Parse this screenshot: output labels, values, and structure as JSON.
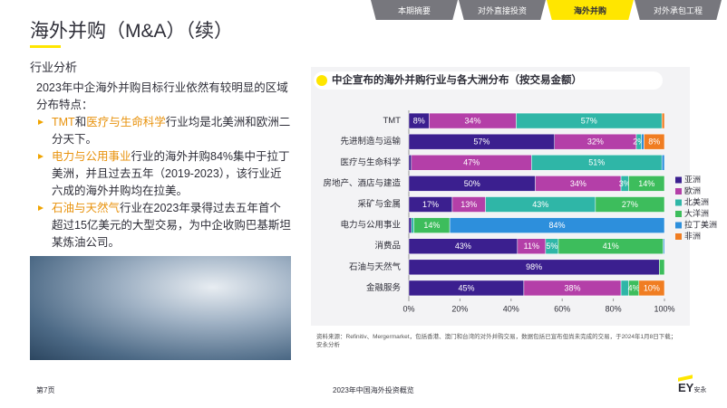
{
  "header": {
    "tabs": [
      "本期摘要",
      "对外直接投资",
      "海外并购",
      "对外承包工程"
    ],
    "active_tab": 2,
    "title": "海外并购（M&A）（续）",
    "section": "行业分析"
  },
  "text": {
    "intro": "2023年中企海外并购目标行业依然有较明显的区域分布特点：",
    "bullets": [
      [
        {
          "text": "TMT",
          "emphasis": true
        },
        {
          "text": "和"
        },
        {
          "text": "医疗与生命科学",
          "emphasis": true
        },
        {
          "text": "行业均是北美洲和欧洲二分天下。"
        }
      ],
      [
        {
          "text": "电力与公用事业",
          "emphasis": true
        },
        {
          "text": "行业的海外并购84%集中于拉丁美洲，并且过去五年（2019-2023），该行业近六成的海外并购均在拉美。"
        }
      ],
      [
        {
          "text": "石油与天然气",
          "emphasis": true
        },
        {
          "text": "行业在2023年录得过去五年首个超过15亿美元的大型交易，为中企收购巴基斯坦某炼油公司。"
        }
      ]
    ]
  },
  "chart_data": {
    "type": "stacked_barh",
    "title": "中企宣布的海外并购行业与各大洲分布（按交易金额）",
    "categories": [
      "TMT",
      "先进制造与运输",
      "医疗与生命科学",
      "房地产、酒店与建造",
      "采矿与金属",
      "电力与公用事业",
      "消费品",
      "石油与天然气",
      "金融服务"
    ],
    "series": [
      {
        "name": "亚洲",
        "color": "#3b1f8f",
        "values": [
          8,
          57,
          1,
          49.5,
          17,
          1,
          42.5,
          98,
          45
        ],
        "value_labels": [
          "8%",
          "57%",
          null,
          "50%",
          "17%",
          null,
          "43%",
          "98%",
          "45%"
        ]
      },
      {
        "name": "欧洲",
        "color": "#b43fa8",
        "values": [
          34,
          32,
          47,
          33.5,
          13,
          0,
          11,
          0,
          38
        ],
        "value_labels": [
          "34%",
          "32%",
          "47%",
          "34%",
          "13%",
          null,
          "11%",
          null,
          "38%"
        ]
      },
      {
        "name": "北美洲",
        "color": "#2fb6a7",
        "values": [
          57,
          2,
          51,
          3,
          43,
          1,
          5,
          0,
          3
        ],
        "value_labels": [
          "57%",
          "2%",
          "51%",
          "3%",
          "43%",
          null,
          "5%",
          null,
          null
        ]
      },
      {
        "name": "大洋洲",
        "color": "#3dbd5c",
        "values": [
          0,
          0,
          0,
          14,
          27,
          14,
          41,
          2,
          4
        ],
        "value_labels": [
          null,
          null,
          null,
          "14%",
          "27%",
          "14%",
          "41%",
          null,
          "4%"
        ]
      },
      {
        "name": "拉丁美洲",
        "color": "#2d8fdc",
        "values": [
          0,
          1,
          1,
          0,
          0,
          84,
          0.5,
          0,
          0
        ],
        "value_labels": [
          null,
          null,
          null,
          null,
          null,
          "84%",
          null,
          null,
          null
        ]
      },
      {
        "name": "非洲",
        "color": "#f07d22",
        "values": [
          1,
          8,
          0,
          0,
          0,
          0,
          0,
          0,
          10
        ],
        "value_labels": [
          null,
          "8%",
          null,
          null,
          null,
          null,
          null,
          null,
          "10%"
        ]
      }
    ],
    "xlim": [
      0,
      100
    ],
    "xticks": [
      {
        "value": 0,
        "label": "0%"
      },
      {
        "value": 20,
        "label": "20%"
      },
      {
        "value": 40,
        "label": "40%"
      },
      {
        "value": 60,
        "label": "60%"
      },
      {
        "value": 80,
        "label": "80%"
      },
      {
        "value": 100,
        "label": "100%"
      }
    ],
    "legend": "right",
    "source": "资料来源：Refinitiv、Mergermarket，包括香港、澳门和台湾的对外并购交易，数据包括已宣布但尚未完成的交易，于2024年1月8日下载；安永分析"
  },
  "footer": {
    "page": "第7页",
    "report": "2023年中国海外投资概览",
    "logo": "EY",
    "logo_cn": "安永"
  }
}
